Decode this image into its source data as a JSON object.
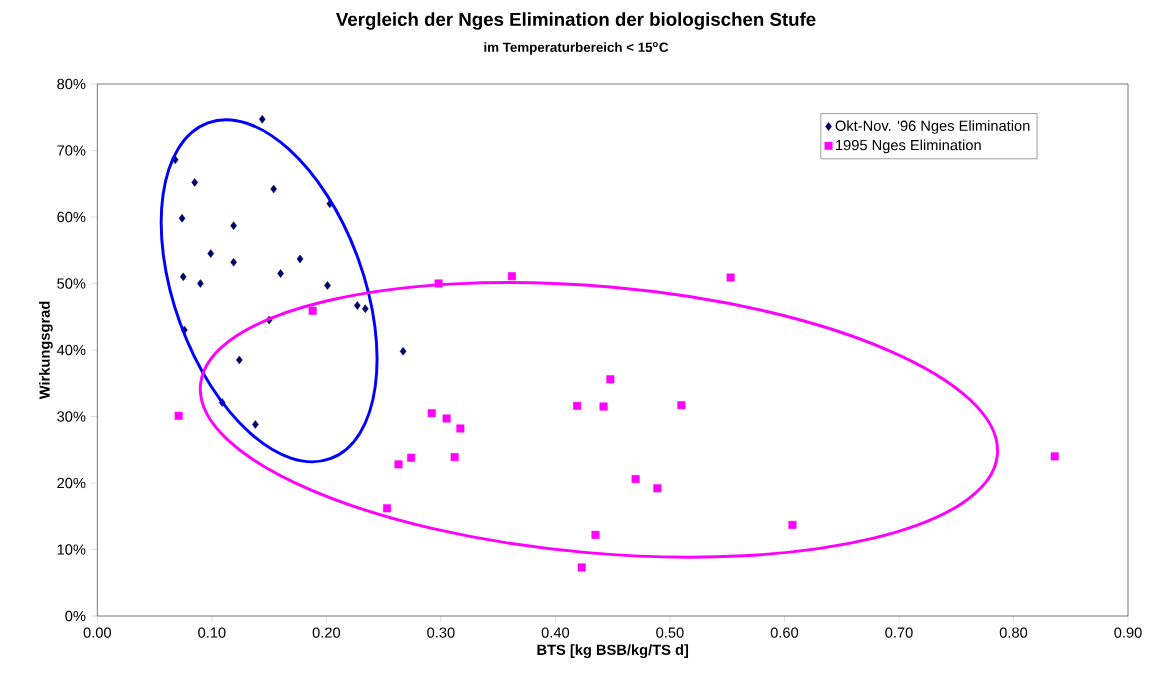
{
  "chart_data": {
    "type": "scatter",
    "title": "Vergleich der Nges Elimination der biologischen Stufe",
    "subtitle": "im Temperaturbereich < 15$^{o}$C",
    "xlabel": "BTS [kg BSB/kg/TS d]",
    "ylabel": "Wirkungsgrad",
    "xlim": [
      0,
      0.9
    ],
    "xticks": [
      {
        "value": 0,
        "label": "0.00"
      },
      {
        "value": 0.1,
        "label": "0.10"
      },
      {
        "value": 0.2,
        "label": "0.20"
      },
      {
        "value": 0.3,
        "label": "0.30"
      },
      {
        "value": 0.4,
        "label": "0.40"
      },
      {
        "value": 0.5,
        "label": "0.50"
      },
      {
        "value": 0.6,
        "label": "0.60"
      },
      {
        "value": 0.7,
        "label": "0.70"
      },
      {
        "value": 0.8,
        "label": "0.80"
      },
      {
        "value": 0.9,
        "label": "0.90"
      }
    ],
    "ylim": [
      0,
      80
    ],
    "yticks": [
      {
        "value": 0,
        "label": "0%"
      },
      {
        "value": 10,
        "label": "10%"
      },
      {
        "value": 20,
        "label": "20%"
      },
      {
        "value": 30,
        "label": "30%"
      },
      {
        "value": 40,
        "label": "40%"
      },
      {
        "value": 50,
        "label": "50%"
      },
      {
        "value": 60,
        "label": "60%"
      },
      {
        "value": 70,
        "label": "70%"
      },
      {
        "value": 80,
        "label": "80%"
      }
    ],
    "grid": false,
    "legend": "top right",
    "series": [
      {
        "name": "Okt-Nov. '96 Nges Elimination",
        "color": "#000066",
        "marker": "diamond",
        "x": [
          0.144,
          0.068,
          0.085,
          0.154,
          0.203,
          0.074,
          0.119,
          0.099,
          0.119,
          0.177,
          0.16,
          0.075,
          0.09,
          0.201,
          0.227,
          0.234,
          0.15,
          0.076,
          0.267,
          0.124,
          0.109,
          0.138
        ],
        "values": [
          74.7,
          68.6,
          65.2,
          64.2,
          62.0,
          59.8,
          58.7,
          54.5,
          53.2,
          53.7,
          51.5,
          51.0,
          50.0,
          49.7,
          46.7,
          46.2,
          44.5,
          43.0,
          39.8,
          38.5,
          32.1,
          28.8
        ]
      },
      {
        "name": "1995 Nges Elimination",
        "color": "#ff00ff",
        "marker": "square",
        "x": [
          0.071,
          0.188,
          0.298,
          0.362,
          0.292,
          0.305,
          0.317,
          0.274,
          0.263,
          0.312,
          0.253,
          0.553,
          0.448,
          0.419,
          0.442,
          0.51,
          0.47,
          0.489,
          0.435,
          0.423,
          0.607,
          0.836
        ],
        "values": [
          30.1,
          45.9,
          50.0,
          51.1,
          30.5,
          29.7,
          28.2,
          23.8,
          22.8,
          23.9,
          16.2,
          50.9,
          35.6,
          31.6,
          31.5,
          31.7,
          20.6,
          19.2,
          12.2,
          7.3,
          13.7,
          24.0
        ]
      }
    ]
  }
}
